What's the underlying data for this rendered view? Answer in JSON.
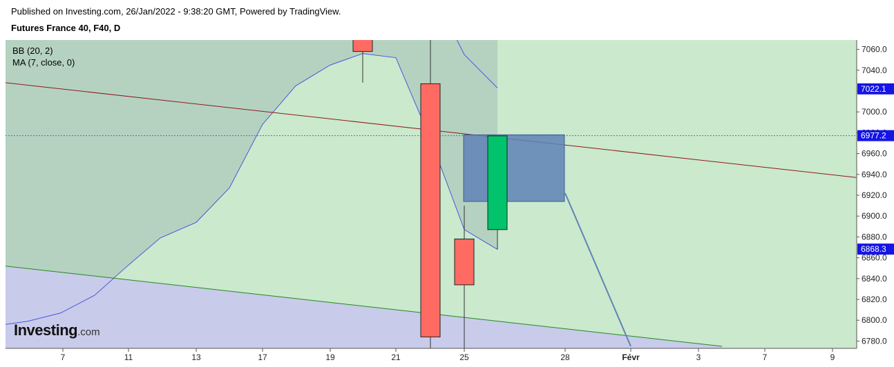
{
  "header": {
    "published": "Published on Investing.com, 26/Jan/2022 - 9:38:20 GMT, Powered by TradingView.",
    "symbol": "Futures France 40, F40, D"
  },
  "legend": {
    "bb": "BB (20, 2)",
    "ma": "MA (7, close, 0)"
  },
  "logo": {
    "main": "Investing",
    "suffix": ".com"
  },
  "colors": {
    "bb_fill": "#cbe9cc",
    "bb_shade": "#b5d2c1",
    "lower_fill": "#c9cbea",
    "bb_line": "#4a56e0",
    "bull": "#00c36b",
    "bear": "#ff6b63",
    "trend_upper": "#8b1a1a",
    "trend_lower": "#1e8a1e",
    "box": "#5f83b6",
    "price_tag": "#1515e6",
    "dotted": "#4a63e8"
  },
  "chart_data": {
    "type": "candlestick",
    "y_axis": {
      "ticks": [
        7060,
        7040,
        7020,
        7000,
        6980,
        6960,
        6940,
        6920,
        6900,
        6880,
        6860,
        6840,
        6820,
        6800,
        6780
      ],
      "tick_labels": [
        "7060.0",
        "7040.0",
        "7020.0",
        "7000.0",
        "6980.0",
        "6960.0",
        "6940.0",
        "6920.0",
        "6900.0",
        "6880.0",
        "6860.0",
        "6840.0",
        "6820.0",
        "6800.0",
        "6780.0"
      ],
      "range": [
        6773,
        7069
      ]
    },
    "x_axis": {
      "tick_labels": [
        "7",
        "11",
        "13",
        "17",
        "19",
        "21",
        "25",
        "28",
        "Févr",
        "3",
        "7",
        "9"
      ]
    },
    "price_tags": [
      {
        "value": 7022.1,
        "label": "7022.1"
      },
      {
        "value": 6977.2,
        "label": "6977.2"
      },
      {
        "value": 6868.3,
        "label": "6868.3"
      }
    ],
    "candles": [
      {
        "date": "20",
        "open": 7075,
        "high": 7105,
        "low": 7028,
        "close": 7058
      },
      {
        "date": "24",
        "open": 7027,
        "high": 7080,
        "low": 6773,
        "close": 6784
      },
      {
        "date": "25",
        "open": 6878,
        "high": 6910,
        "low": 6773,
        "close": 6834
      },
      {
        "date": "26",
        "open": 6887,
        "high": 6977,
        "low": 6868,
        "close": 6977
      }
    ],
    "bollinger_middle": [
      {
        "date": "3",
        "value": 6796
      },
      {
        "date": "5",
        "value": 6799
      },
      {
        "date": "6",
        "value": 6807
      },
      {
        "date": "10",
        "value": 6824
      },
      {
        "date": "11",
        "value": 6853
      },
      {
        "date": "12",
        "value": 6879
      },
      {
        "date": "13",
        "value": 6894
      },
      {
        "date": "14",
        "value": 6927
      },
      {
        "date": "17",
        "value": 6988
      },
      {
        "date": "18",
        "value": 7025
      },
      {
        "date": "19",
        "value": 7045
      },
      {
        "date": "20",
        "value": 7056
      },
      {
        "date": "21",
        "value": 7052
      },
      {
        "date": "24",
        "value": 6974
      },
      {
        "date": "25",
        "value": 6887
      },
      {
        "date": "26",
        "value": 6868
      }
    ],
    "bollinger_upper": [
      {
        "date": "24",
        "value": 7120
      },
      {
        "date": "25",
        "value": 7055
      },
      {
        "date": "26",
        "value": 7023
      }
    ],
    "projection": [
      {
        "date": "28",
        "value": 6922
      },
      {
        "date": "Févr",
        "value": 6775
      }
    ],
    "trend_upper": {
      "start": 7028,
      "end": 6937
    },
    "trend_lower": {
      "start": 6852,
      "end": 6775
    },
    "box": {
      "top": 6978,
      "bottom": 6914
    }
  }
}
